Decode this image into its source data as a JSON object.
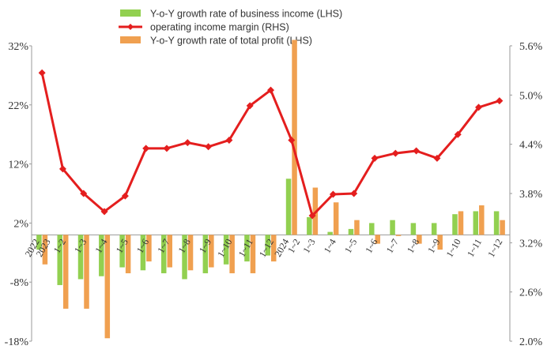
{
  "chart_data": {
    "type": "bar",
    "categories": [
      "2022-2023",
      "1~2",
      "1~3",
      "1~4",
      "1~5",
      "1~6",
      "1~7",
      "1~8",
      "1~9",
      "1~10",
      "1~11",
      "1~12",
      "2024 1~2",
      "1~3",
      "1~4",
      "1~5",
      "1~6",
      "1~7",
      "1~8",
      "1~9",
      "1~10",
      "1~11",
      "1~12"
    ],
    "category_display": [
      [
        "2022",
        "2023"
      ],
      [
        "1~2"
      ],
      [
        "1~3"
      ],
      [
        "1~4"
      ],
      [
        "1~5"
      ],
      [
        "1~6"
      ],
      [
        "1~7"
      ],
      [
        "1~8"
      ],
      [
        "1~9"
      ],
      [
        "1~10"
      ],
      [
        "1~11"
      ],
      [
        "1~12"
      ],
      [
        "2024",
        "1~2"
      ],
      [
        "1~3"
      ],
      [
        "1~4"
      ],
      [
        "1~5"
      ],
      [
        "1~6"
      ],
      [
        "1~7"
      ],
      [
        "1~8"
      ],
      [
        "1~9"
      ],
      [
        "1~10"
      ],
      [
        "1~11"
      ],
      [
        "1~12"
      ]
    ],
    "series": [
      {
        "name": "Y-o-Y growth rate of business income (LHS)",
        "type": "bar",
        "axis": "left",
        "color": "#92D050",
        "values": [
          -2.5,
          -8.5,
          -7.5,
          -7.0,
          -5.5,
          -6.0,
          -6.5,
          -7.5,
          -6.5,
          -5.0,
          -4.5,
          -3.5,
          9.5,
          3.0,
          0.5,
          1.0,
          2.0,
          2.5,
          2.0,
          2.0,
          3.5,
          4.0,
          4.0
        ]
      },
      {
        "name": "operating income margin (RHS)",
        "type": "line",
        "axis": "right",
        "color": "#E41E1E",
        "values": [
          5.27,
          4.1,
          3.8,
          3.58,
          3.77,
          4.35,
          4.35,
          4.42,
          4.37,
          4.45,
          4.87,
          5.06,
          4.45,
          3.53,
          3.79,
          3.8,
          4.23,
          4.29,
          4.32,
          4.23,
          4.52,
          4.85,
          4.93
        ]
      },
      {
        "name": "Y-o-Y growth rate of total profit (LHS)",
        "type": "bar",
        "axis": "left",
        "color": "#F0A050",
        "values": [
          -5.0,
          -12.5,
          -12.5,
          -17.5,
          -6.5,
          -4.5,
          -5.5,
          -6.0,
          -5.5,
          -6.5,
          -6.5,
          -4.5,
          33.0,
          8.0,
          5.5,
          2.5,
          -1.5,
          -0.2,
          -1.5,
          -2.5,
          4.0,
          5.0,
          2.5
        ]
      }
    ],
    "left_axis": {
      "min": -18,
      "max": 32,
      "ticks": [
        "-18%",
        "-8%",
        "2%",
        "12%",
        "22%",
        "32%"
      ]
    },
    "right_axis": {
      "min": 2.0,
      "max": 5.6,
      "ticks": [
        "2.0%",
        "2.6%",
        "3.2%",
        "3.8%",
        "4.4%",
        "5.0%",
        "5.6%"
      ]
    },
    "legend_position": "top-center",
    "grid": false
  }
}
